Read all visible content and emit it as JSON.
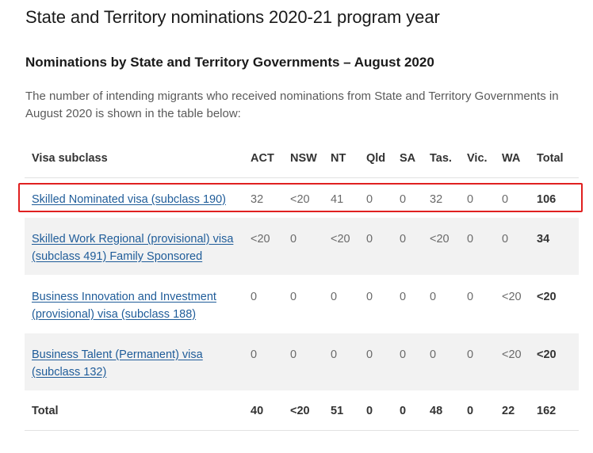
{
  "page": {
    "title": "State and Territory nominations 2020-21 program year",
    "subtitle": "Nominations by State and Territory Governments – August 2020",
    "intro": "The number of intending migrants who received nominations from State and Territory Governments in August 2020 is shown in the table below:"
  },
  "table": {
    "headers": [
      "Visa subclass",
      "ACT",
      "NSW",
      "NT",
      "Qld",
      "SA",
      "Tas.",
      "Vic.",
      "WA",
      "Total"
    ],
    "rows": [
      {
        "label": "Skilled Nominated visa (subclass 190)",
        "values": [
          "32",
          "<20",
          "41",
          "0",
          "0",
          "32",
          "0",
          "0",
          "106"
        ]
      },
      {
        "label": "Skilled Work Regional (provisional) visa (subclass 491) Family Sponsored",
        "values": [
          "<20",
          "0",
          "<20",
          "0",
          "0",
          "<20",
          "0",
          "0",
          "34"
        ]
      },
      {
        "label": "Business Innovation and Investment (provisional) visa (subclass 188)",
        "values": [
          "0",
          "0",
          "0",
          "0",
          "0",
          "0",
          "0",
          "<20",
          "<20"
        ]
      },
      {
        "label": "Business Talent (Permanent) visa (subclass 132)",
        "values": [
          "0",
          "0",
          "0",
          "0",
          "0",
          "0",
          "0",
          "<20",
          "<20"
        ]
      }
    ],
    "total": {
      "label": "Total",
      "values": [
        "40",
        "<20",
        "51",
        "0",
        "0",
        "48",
        "0",
        "22",
        "162"
      ]
    }
  },
  "colors": {
    "link": "#1f5c99",
    "highlight": "#e02020",
    "shaded_row": "#f2f2f2"
  }
}
